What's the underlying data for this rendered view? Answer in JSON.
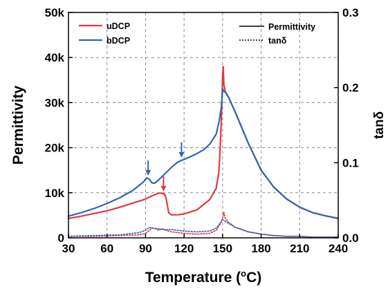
{
  "chart_data": {
    "type": "line",
    "xlabel_main": "Temperature (",
    "xlabel_sup": "o",
    "xlabel_end": "C)",
    "ylabel": "Permittivity",
    "y2label_main": "tan",
    "y2label_sym": "δ",
    "xlim": [
      30,
      240
    ],
    "ylim": [
      0,
      50000
    ],
    "y2lim": [
      0,
      0.3
    ],
    "x_ticks": [
      "30",
      "60",
      "90",
      "120",
      "150",
      "180",
      "210",
      "240"
    ],
    "y_ticks": [
      "0",
      "10k",
      "20k",
      "30k",
      "40k",
      "50k"
    ],
    "y2_ticks": [
      "0.0",
      "0.1",
      "0.2",
      "0.3"
    ],
    "grid": true,
    "legend_samples": [
      "uDCP",
      "bDCP"
    ],
    "legend_styles": [
      "Permittivity",
      "tanδ"
    ],
    "colors": {
      "uDCP": "#e0393e",
      "bDCP": "#3165b0"
    },
    "series": [
      {
        "name": "uDCP",
        "quantity": "Permittivity",
        "axis": "left",
        "x": [
          30,
          40,
          50,
          60,
          70,
          80,
          90,
          95,
          100,
          103,
          105,
          106,
          107,
          108,
          110,
          115,
          120,
          130,
          140,
          145,
          147,
          148,
          149,
          150,
          150.5,
          151,
          152,
          153,
          155,
          160,
          170,
          180,
          190,
          200,
          210,
          220,
          230,
          240
        ],
        "y": [
          4300,
          4800,
          5400,
          6000,
          6800,
          7700,
          8600,
          9300,
          9900,
          9900,
          9600,
          8800,
          7200,
          5600,
          5100,
          5100,
          5300,
          6200,
          8500,
          11000,
          14500,
          19000,
          26000,
          36000,
          38000,
          34000,
          32500,
          32000,
          31000,
          27800,
          21000,
          15000,
          11200,
          8600,
          6800,
          5600,
          4900,
          4300
        ]
      },
      {
        "name": "bDCP",
        "quantity": "Permittivity",
        "axis": "left",
        "x": [
          30,
          40,
          50,
          60,
          70,
          80,
          88,
          91,
          93,
          95,
          97,
          100,
          105,
          110,
          115,
          118,
          120,
          125,
          130,
          135,
          140,
          145,
          147,
          148,
          149,
          150,
          151,
          152,
          153,
          155,
          160,
          170,
          180,
          190,
          200,
          210,
          220,
          230,
          240
        ],
        "y": [
          4800,
          5600,
          6500,
          7600,
          8900,
          10500,
          12300,
          13300,
          13000,
          12200,
          12100,
          12800,
          14200,
          15600,
          16800,
          17200,
          17400,
          18000,
          18700,
          19500,
          20800,
          23000,
          25500,
          27000,
          29000,
          33000,
          32500,
          32300,
          32000,
          31000,
          27800,
          21000,
          15000,
          11200,
          8600,
          6800,
          5600,
          4900,
          4300
        ]
      },
      {
        "name": "uDCP",
        "quantity": "tanδ",
        "axis": "right",
        "x": [
          30,
          50,
          70,
          85,
          90,
          93,
          95,
          98,
          100,
          103,
          106,
          110,
          120,
          130,
          140,
          145,
          148,
          150,
          151,
          152,
          155,
          160,
          170,
          180,
          190,
          200,
          210,
          220,
          230,
          240
        ],
        "y": [
          0.002,
          0.002,
          0.003,
          0.004,
          0.006,
          0.01,
          0.013,
          0.012,
          0.01,
          0.012,
          0.01,
          0.008,
          0.006,
          0.005,
          0.006,
          0.01,
          0.018,
          0.026,
          0.034,
          0.026,
          0.02,
          0.014,
          0.008,
          0.005,
          0.003,
          0.002,
          0.002,
          0.001,
          0.001,
          0.001
        ]
      },
      {
        "name": "bDCP",
        "quantity": "tanδ",
        "axis": "right",
        "x": [
          30,
          50,
          70,
          85,
          90,
          93,
          96,
          100,
          105,
          110,
          120,
          130,
          140,
          145,
          148,
          150,
          152,
          155,
          160,
          170,
          180,
          190,
          200,
          210,
          220,
          230,
          240
        ],
        "y": [
          0.002,
          0.003,
          0.004,
          0.007,
          0.01,
          0.014,
          0.013,
          0.012,
          0.011,
          0.011,
          0.009,
          0.008,
          0.009,
          0.013,
          0.019,
          0.024,
          0.022,
          0.019,
          0.014,
          0.008,
          0.005,
          0.003,
          0.002,
          0.002,
          0.001,
          0.001,
          0.001
        ]
      }
    ],
    "annotations": [
      {
        "type": "arrow",
        "color": "#3165b0",
        "x": 92,
        "y": 13800
      },
      {
        "type": "arrow",
        "color": "#e0393e",
        "x": 104,
        "y": 10300
      },
      {
        "type": "arrow",
        "color": "#3165b0",
        "x": 118,
        "y": 17800
      }
    ]
  }
}
